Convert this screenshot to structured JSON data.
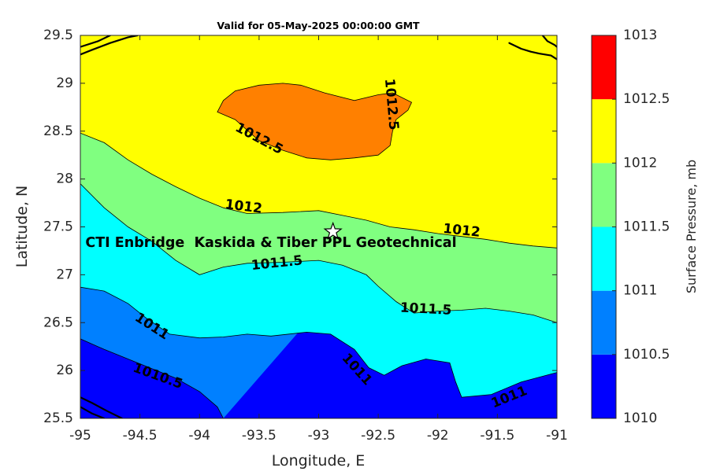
{
  "chart_data": {
    "type": "contour",
    "title": "Valid for 05-May-2025 00:00:00 GMT",
    "xlabel": "Longitude, E",
    "ylabel": "Latitude, N",
    "xlim": [
      -95,
      -91
    ],
    "ylim": [
      25.5,
      29.5
    ],
    "x_ticks": [
      -95,
      -94.5,
      -94,
      -93.5,
      -93,
      -92.5,
      -92,
      -91.5,
      -91
    ],
    "x_tick_labels": [
      "-95",
      "-94.5",
      "-94",
      "-93.5",
      "-93",
      "-92.5",
      "-92",
      "-91.5",
      "-91"
    ],
    "y_ticks": [
      25.5,
      26,
      26.5,
      27,
      27.5,
      28,
      28.5,
      29,
      29.5
    ],
    "y_tick_labels": [
      "25.5",
      "26",
      "26.5",
      "27",
      "27.5",
      "28",
      "28.5",
      "29",
      "29.5"
    ],
    "levels": [
      1010,
      1010.5,
      1011,
      1011.5,
      1012,
      1012.5,
      1013
    ],
    "level_colors": [
      "#0000ff",
      "#0080ff",
      "#00ffff",
      "#80ff80",
      "#ffff00",
      "#ff8000",
      "#ff0000"
    ],
    "colorbar": {
      "label": "Surface Pressure, mb",
      "tick_labels": [
        "1010",
        "1010.5",
        "1011",
        "1011.5",
        "1012",
        "1012.5",
        "1013"
      ]
    },
    "isolines": [
      {
        "level": 1010.5,
        "points": [
          [
            -95,
            26.33
          ],
          [
            -94.8,
            26.22
          ],
          [
            -94.6,
            26.12
          ],
          [
            -94.4,
            26.02
          ],
          [
            -94.2,
            25.92
          ],
          [
            -94.0,
            25.78
          ],
          [
            -93.85,
            25.62
          ],
          [
            -93.8,
            25.5
          ]
        ]
      },
      {
        "level": 1011,
        "points": [
          [
            -95,
            26.87
          ],
          [
            -94.8,
            26.83
          ],
          [
            -94.6,
            26.7
          ],
          [
            -94.45,
            26.55
          ],
          [
            -94.25,
            26.38
          ],
          [
            -94.0,
            26.34
          ],
          [
            -93.8,
            26.35
          ],
          [
            -93.6,
            26.38
          ],
          [
            -93.4,
            26.36
          ],
          [
            -93.1,
            26.4
          ],
          [
            -92.9,
            26.38
          ],
          [
            -92.7,
            26.22
          ],
          [
            -92.58,
            26.03
          ],
          [
            -92.45,
            25.95
          ],
          [
            -92.3,
            26.05
          ],
          [
            -92.1,
            26.12
          ],
          [
            -91.9,
            26.08
          ],
          [
            -91.85,
            25.88
          ],
          [
            -91.8,
            25.72
          ],
          [
            -91.55,
            25.75
          ],
          [
            -91.3,
            25.88
          ],
          [
            -91.0,
            25.98
          ]
        ]
      },
      {
        "level": 1011.5,
        "points": [
          [
            -95,
            27.95
          ],
          [
            -94.8,
            27.7
          ],
          [
            -94.6,
            27.5
          ],
          [
            -94.4,
            27.35
          ],
          [
            -94.2,
            27.15
          ],
          [
            -94.0,
            27.0
          ],
          [
            -93.8,
            27.08
          ],
          [
            -93.6,
            27.12
          ],
          [
            -93.3,
            27.13
          ],
          [
            -93.0,
            27.15
          ],
          [
            -92.8,
            27.1
          ],
          [
            -92.6,
            27.0
          ],
          [
            -92.5,
            26.88
          ],
          [
            -92.35,
            26.72
          ],
          [
            -92.2,
            26.6
          ],
          [
            -92.0,
            26.62
          ],
          [
            -91.8,
            26.63
          ],
          [
            -91.6,
            26.65
          ],
          [
            -91.4,
            26.62
          ],
          [
            -91.2,
            26.58
          ],
          [
            -91.0,
            26.5
          ]
        ]
      },
      {
        "level": 1012,
        "points": [
          [
            -95,
            28.48
          ],
          [
            -94.8,
            28.38
          ],
          [
            -94.6,
            28.2
          ],
          [
            -94.4,
            28.05
          ],
          [
            -94.2,
            27.92
          ],
          [
            -94.0,
            27.8
          ],
          [
            -93.8,
            27.7
          ],
          [
            -93.6,
            27.64
          ],
          [
            -93.3,
            27.65
          ],
          [
            -93.0,
            27.67
          ],
          [
            -92.8,
            27.62
          ],
          [
            -92.6,
            27.57
          ],
          [
            -92.4,
            27.5
          ],
          [
            -92.2,
            27.47
          ],
          [
            -92.0,
            27.43
          ],
          [
            -91.8,
            27.4
          ],
          [
            -91.6,
            27.37
          ],
          [
            -91.4,
            27.33
          ],
          [
            -91.2,
            27.3
          ],
          [
            -91.0,
            27.28
          ]
        ]
      },
      {
        "level": 1012.5,
        "closed": true,
        "points": [
          [
            -93.85,
            28.7
          ],
          [
            -93.7,
            28.62
          ],
          [
            -93.5,
            28.4
          ],
          [
            -93.3,
            28.3
          ],
          [
            -93.1,
            28.22
          ],
          [
            -92.9,
            28.2
          ],
          [
            -92.7,
            28.22
          ],
          [
            -92.5,
            28.25
          ],
          [
            -92.4,
            28.35
          ],
          [
            -92.38,
            28.5
          ],
          [
            -92.35,
            28.62
          ],
          [
            -92.25,
            28.72
          ],
          [
            -92.22,
            28.8
          ],
          [
            -92.38,
            28.9
          ],
          [
            -92.5,
            28.88
          ],
          [
            -92.7,
            28.82
          ],
          [
            -92.95,
            28.9
          ],
          [
            -93.15,
            28.98
          ],
          [
            -93.3,
            29.0
          ],
          [
            -93.5,
            28.98
          ],
          [
            -93.7,
            28.92
          ],
          [
            -93.8,
            28.82
          ]
        ]
      }
    ],
    "contour_labels": [
      {
        "text": "1012.5",
        "lon": -93.5,
        "lat": 28.42,
        "angle": 28
      },
      {
        "text": "1012.5",
        "lon": -92.39,
        "lat": 28.78,
        "angle": 85
      },
      {
        "text": "1012",
        "lon": -93.63,
        "lat": 27.71,
        "angle": 7
      },
      {
        "text": "1012",
        "lon": -91.8,
        "lat": 27.46,
        "angle": 6
      },
      {
        "text": "1011.5",
        "lon": -93.35,
        "lat": 27.12,
        "angle": -6
      },
      {
        "text": "1011.5",
        "lon": -92.1,
        "lat": 26.64,
        "angle": 3
      },
      {
        "text": "1011",
        "lon": -94.4,
        "lat": 26.46,
        "angle": 33
      },
      {
        "text": "1011",
        "lon": -92.68,
        "lat": 26.01,
        "angle": 48
      },
      {
        "text": "1011",
        "lon": -91.4,
        "lat": 25.72,
        "angle": -22
      },
      {
        "text": "1010.5",
        "lon": -94.35,
        "lat": 25.94,
        "angle": 20
      }
    ],
    "marker": {
      "label": "CTI Enbridge  Kaskida & Tiber PPL Geotechnical",
      "lon": -92.88,
      "lat": 27.45,
      "label_lon": -93.4,
      "label_lat": 27.33,
      "symbol": "star"
    },
    "coastlines": [
      [
        [
          -95.0,
          29.3
        ],
        [
          -94.9,
          29.35
        ],
        [
          -94.75,
          29.42
        ],
        [
          -94.6,
          29.48
        ],
        [
          -94.52,
          29.5
        ]
      ],
      [
        [
          -95.0,
          29.38
        ],
        [
          -94.85,
          29.44
        ],
        [
          -94.75,
          29.5
        ]
      ],
      [
        [
          -91.4,
          29.42
        ],
        [
          -91.3,
          29.36
        ],
        [
          -91.22,
          29.33
        ],
        [
          -91.15,
          29.31
        ],
        [
          -91.05,
          29.29
        ],
        [
          -91.0,
          29.25
        ]
      ],
      [
        [
          -91.12,
          29.5
        ],
        [
          -91.08,
          29.44
        ],
        [
          -91.02,
          29.4
        ],
        [
          -91.0,
          29.38
        ]
      ],
      [
        [
          -95.0,
          25.72
        ],
        [
          -94.9,
          25.66
        ],
        [
          -94.78,
          25.58
        ],
        [
          -94.65,
          25.5
        ]
      ],
      [
        [
          -95.0,
          25.62
        ],
        [
          -94.9,
          25.55
        ],
        [
          -94.8,
          25.5
        ]
      ]
    ]
  }
}
